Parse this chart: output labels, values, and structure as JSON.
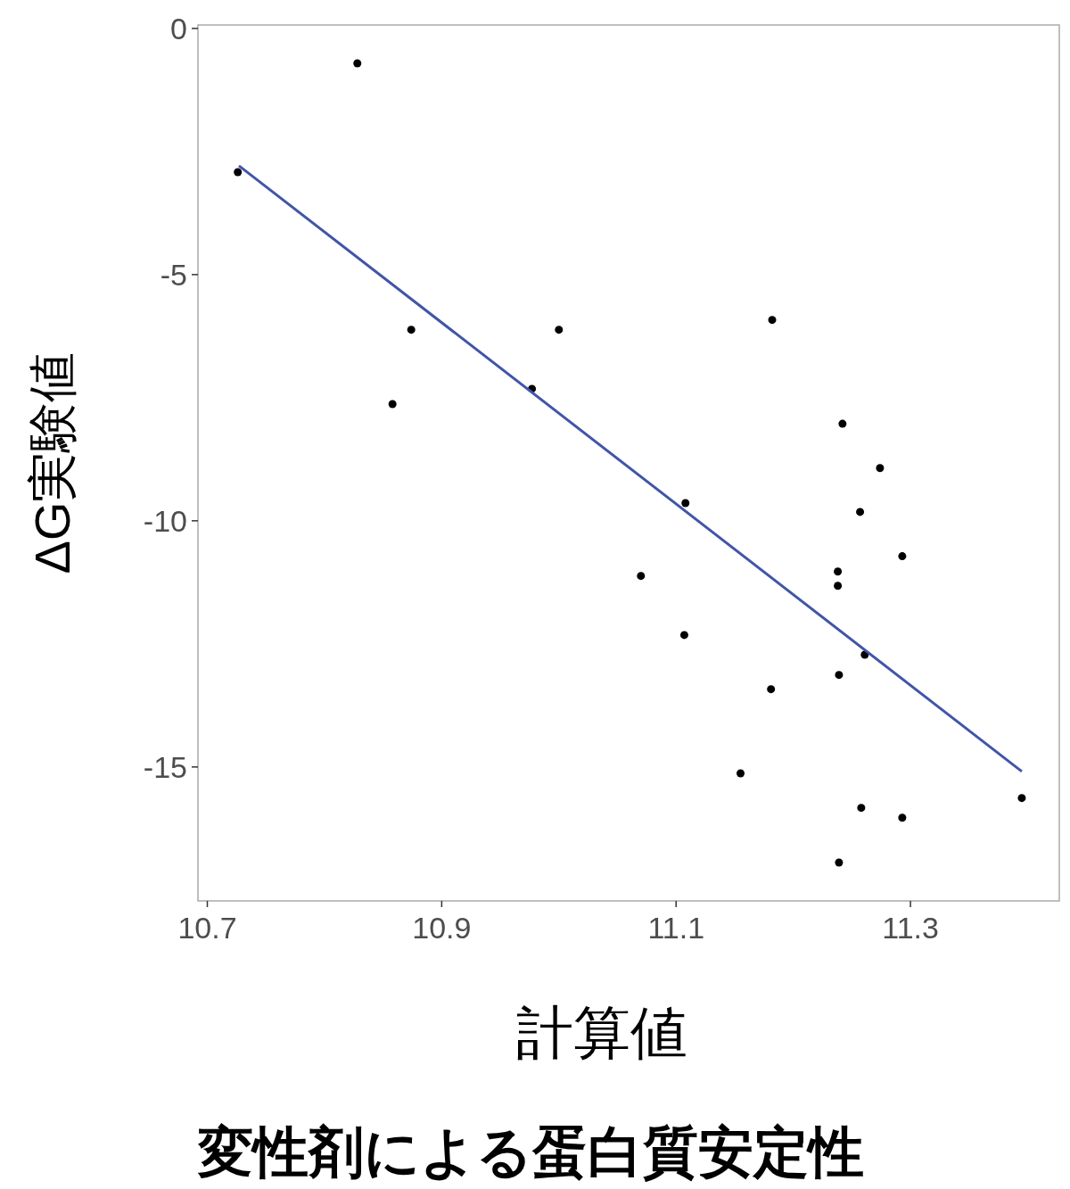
{
  "chart_data": {
    "type": "scatter",
    "title": "変性剤による蛋白質安定性",
    "xlabel": "計算値",
    "ylabel": "ΔG実験値",
    "xlim": [
      10.692,
      11.427
    ],
    "ylim": [
      -17.72,
      0.07
    ],
    "xticks": [
      10.7,
      10.9,
      11.1,
      11.3
    ],
    "yticks": [
      0,
      -5,
      -10,
      -15
    ],
    "grid": false,
    "series": [
      {
        "type": "scatter",
        "color": "#000000",
        "marker": "circle",
        "x": [
          10.726,
          10.828,
          10.874,
          10.858,
          10.977,
          11.0,
          11.182,
          11.108,
          11.07,
          11.107,
          11.242,
          11.274,
          11.257,
          11.293,
          11.238,
          11.238,
          11.261,
          11.239,
          11.181,
          11.155,
          11.258,
          11.293,
          11.239,
          11.395
        ],
        "values": [
          -2.92,
          -0.71,
          -6.12,
          -7.63,
          -7.32,
          -6.12,
          -5.92,
          -9.64,
          -11.12,
          -12.32,
          -8.03,
          -8.93,
          -9.82,
          -10.72,
          -11.03,
          -11.32,
          -12.72,
          -13.13,
          -13.42,
          -15.13,
          -15.83,
          -16.03,
          -16.94,
          -15.63
        ]
      },
      {
        "type": "line",
        "color": "#4155a8",
        "line_style": "solid",
        "marker": "none",
        "x": [
          10.727,
          11.395
        ],
        "values": [
          -2.79,
          -15.09
        ]
      }
    ]
  }
}
